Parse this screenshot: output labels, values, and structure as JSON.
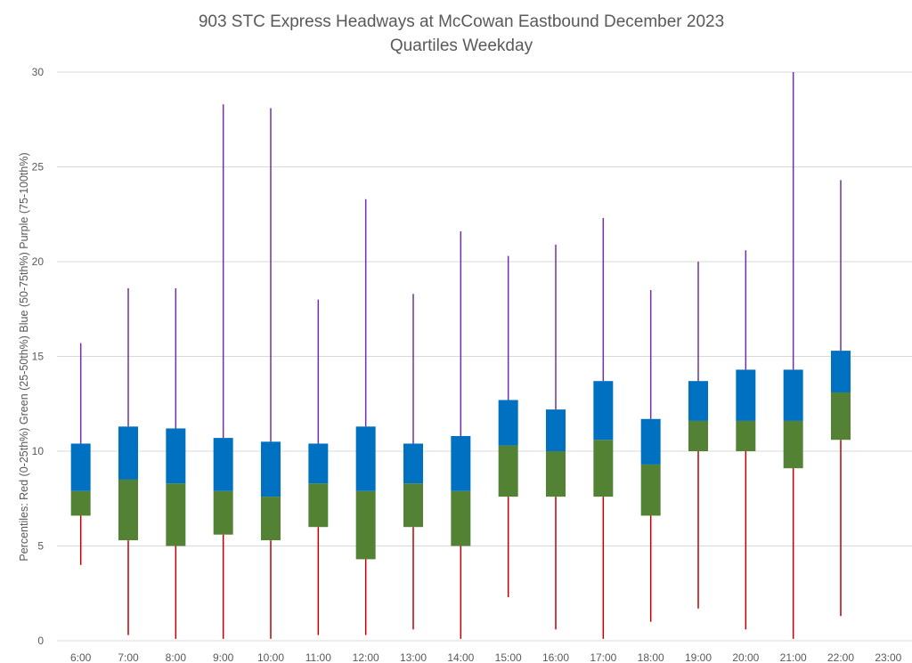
{
  "chart_data": {
    "type": "box",
    "title": "903 STC Express Headways at McCowan Eastbound December 2023",
    "subtitle": "Quartiles Weekday",
    "ylabel": "Percentiles:  Red (0-25th%)  Green (25-50th%)  Blue (50-75th%)  Purple (75-100th%)",
    "xlabel": "",
    "ylim": [
      0,
      30
    ],
    "yticks": [
      0,
      5,
      10,
      15,
      20,
      25,
      30
    ],
    "grid": true,
    "colors": {
      "min_to_q1": "#c00000",
      "q1_to_median": "#548235",
      "median_to_q3": "#0070c0",
      "q3_to_max": "#7030a0"
    },
    "categories": [
      "6:00",
      "7:00",
      "8:00",
      "9:00",
      "10:00",
      "11:00",
      "12:00",
      "13:00",
      "14:00",
      "15:00",
      "16:00",
      "17:00",
      "18:00",
      "19:00",
      "20:00",
      "21:00",
      "22:00",
      "23:00"
    ],
    "min": [
      4.0,
      0.3,
      0.1,
      0.1,
      0.1,
      0.3,
      0.3,
      0.6,
      0.1,
      2.3,
      0.6,
      0.1,
      1.0,
      1.7,
      0.6,
      0.1,
      1.3,
      null
    ],
    "q1": [
      6.6,
      5.3,
      5.0,
      5.6,
      5.3,
      6.0,
      4.3,
      6.0,
      5.0,
      7.6,
      7.6,
      7.6,
      6.6,
      10.0,
      10.0,
      9.1,
      10.6,
      null
    ],
    "median": [
      7.9,
      8.5,
      8.3,
      7.9,
      7.6,
      8.3,
      7.9,
      8.3,
      7.9,
      10.3,
      10.0,
      10.6,
      9.3,
      11.6,
      11.6,
      11.6,
      13.1,
      null
    ],
    "q3": [
      10.4,
      11.3,
      11.2,
      10.7,
      10.5,
      10.4,
      11.3,
      10.4,
      10.8,
      12.7,
      12.2,
      13.7,
      11.7,
      13.7,
      14.3,
      14.3,
      15.3,
      null
    ],
    "max": [
      15.7,
      18.6,
      18.6,
      28.3,
      28.1,
      18.0,
      23.3,
      18.3,
      21.6,
      20.3,
      20.9,
      22.3,
      18.5,
      20.0,
      20.6,
      30.0,
      24.3,
      null
    ]
  }
}
